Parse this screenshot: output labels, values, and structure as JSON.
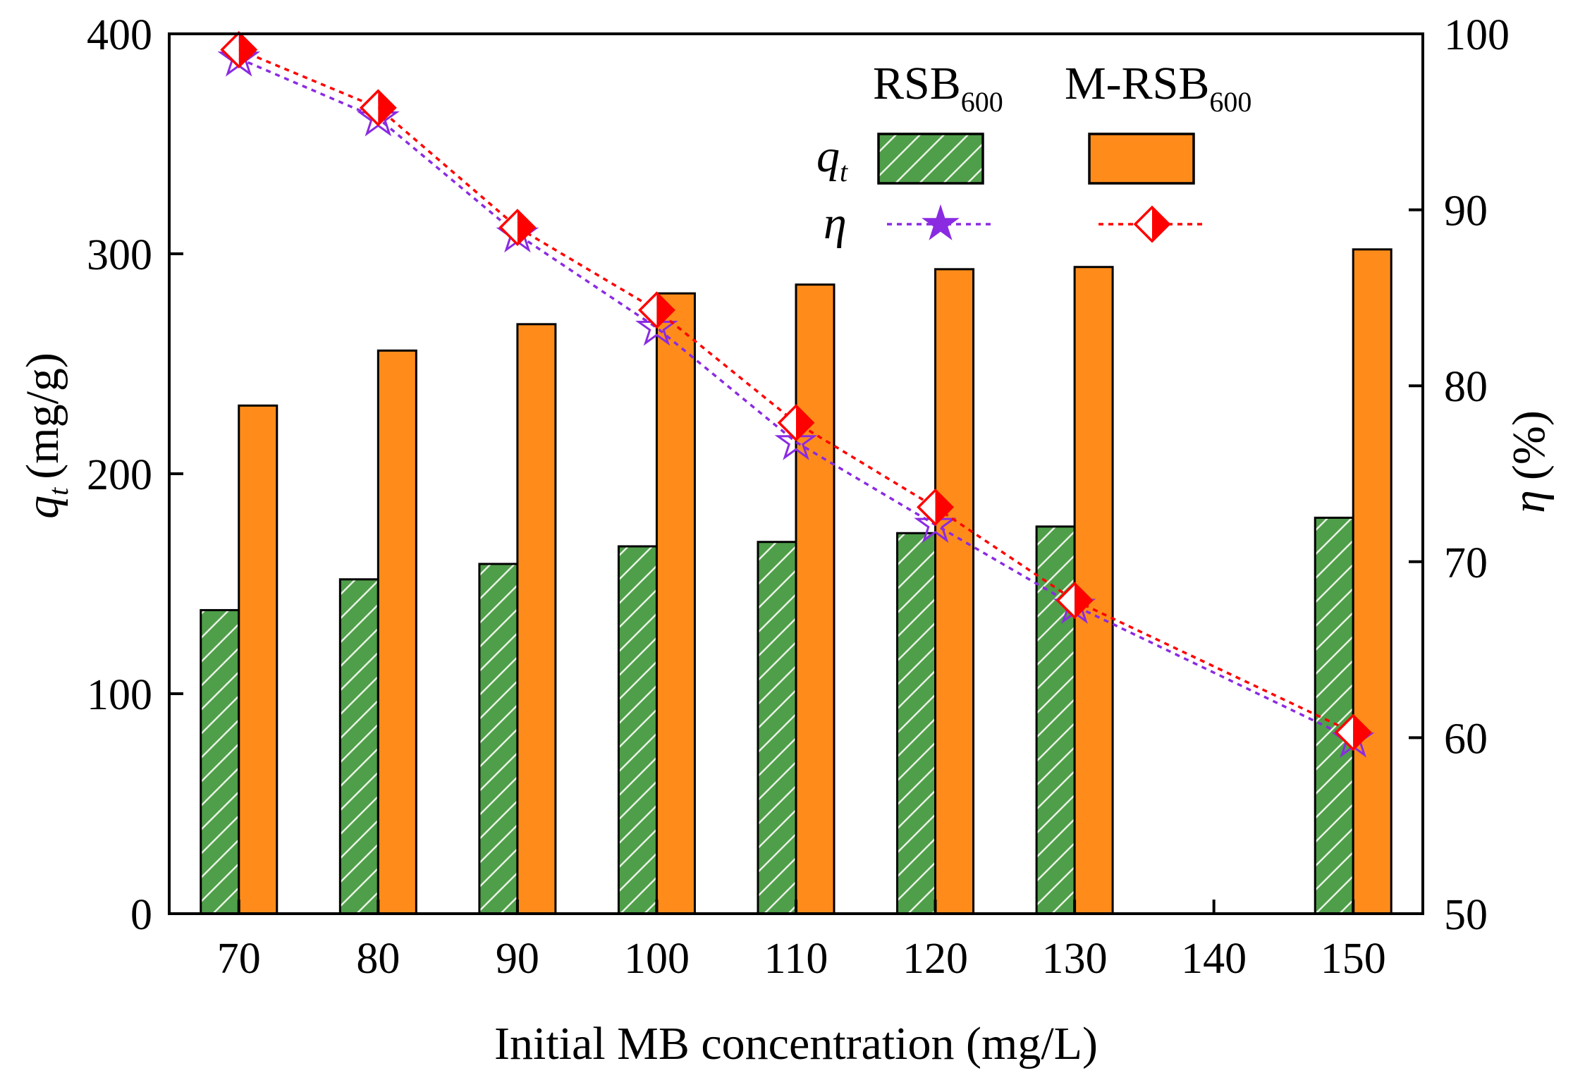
{
  "chart_data": {
    "type": "bar",
    "categories": [
      "70",
      "80",
      "90",
      "100",
      "110",
      "120",
      "130",
      "140",
      "150"
    ],
    "series": [
      {
        "name": "RSB600 q_t",
        "kind": "bar",
        "axis": "left",
        "color": "#4f9e49",
        "hatch": true,
        "values": [
          138,
          152,
          159,
          167,
          169,
          173,
          176,
          null,
          180
        ]
      },
      {
        "name": "M-RSB600 q_t",
        "kind": "bar",
        "axis": "left",
        "color": "#ff8c1a",
        "hatch": false,
        "values": [
          231,
          256,
          268,
          282,
          286,
          293,
          294,
          null,
          302
        ]
      },
      {
        "name": "RSB600 η",
        "kind": "line",
        "axis": "right",
        "color": "#8a2be2",
        "marker": "star",
        "values": [
          98.6,
          95.2,
          88.6,
          83.3,
          76.8,
          72.1,
          67.5,
          null,
          59.9
        ]
      },
      {
        "name": "M-RSB600 η",
        "kind": "line",
        "axis": "right",
        "color": "#ff0000",
        "marker": "half-diamond",
        "values": [
          99.1,
          95.8,
          89.0,
          84.3,
          77.9,
          73.1,
          67.8,
          null,
          60.3
        ]
      }
    ],
    "xlabel": "Initial MB concentration (mg/L)",
    "ylabel": {
      "symbol": "q",
      "sub": "t",
      "unit": "(mg/g)"
    },
    "y2label": {
      "symbol": "η",
      "unit": "(%)"
    },
    "ylim": [
      0,
      400
    ],
    "yticks": [
      "0",
      "100",
      "200",
      "300",
      "400"
    ],
    "y2lim": [
      50,
      100
    ],
    "y2ticks": [
      "50",
      "60",
      "70",
      "80",
      "90",
      "100"
    ],
    "grid": false,
    "legend": {
      "placement": "top-right",
      "col1": {
        "base": "RSB",
        "sub": "600"
      },
      "col2": {
        "base": "M-RSB",
        "sub": "600"
      },
      "row1": {
        "symbol": "q",
        "sub": "t"
      },
      "row2": {
        "symbol": "η"
      }
    }
  }
}
